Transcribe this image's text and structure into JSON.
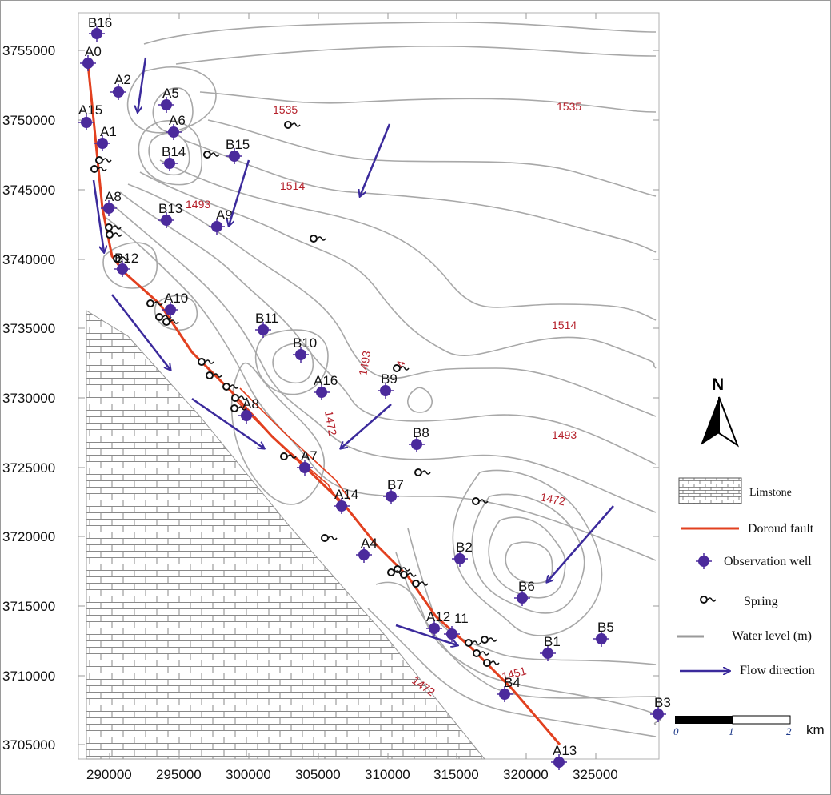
{
  "y_ticks": [
    "3755000",
    "3750000",
    "3745000",
    "3740000",
    "3735000",
    "3730000",
    "3725000",
    "3720000",
    "3715000",
    "3710000",
    "3705000"
  ],
  "x_ticks": [
    "290000",
    "295000",
    "300000",
    "305000",
    "310000",
    "315000",
    "320000",
    "325000"
  ],
  "contour_labels": {
    "c1535_left": "1535",
    "c1535_right": "1535",
    "c1514_top": "1514",
    "c1514_right": "1514",
    "c1493_left": "1493",
    "c1493_mid": "1493",
    "c1493_right": "1493",
    "c1472_mid": "1472",
    "c1472_right": "1472",
    "c1472_bottom": "1472",
    "c1451": "1451",
    "c_partial": "4"
  },
  "wells": {
    "B16": "B16",
    "A0": "A0",
    "A2": "A2",
    "A5": "A5",
    "A15": "A15",
    "A6": "A6",
    "A1": "A1",
    "B14": "B14",
    "B15": "B15",
    "A8": "A8",
    "B13": "B13",
    "A9": "A9",
    "B12": "B12",
    "A10": "A10",
    "B11": "B11",
    "B10": "B10",
    "A16": "A16",
    "B9": "B9",
    "A18": "A8",
    "B8": "B8",
    "A7": "A7",
    "B7": "B7",
    "A14": "A14",
    "A4": "A4",
    "B2": "B2",
    "B6": "B6",
    "A12": "A12",
    "A11": "11",
    "B1": "B1",
    "B5": "B5",
    "B4": "B4",
    "B3": "B3",
    "A13": "A13"
  },
  "north_label": "N",
  "legend": {
    "limestone": "Limstone",
    "fault": "Doroud fault",
    "well": "Observation well",
    "spring": "Spring",
    "water_level": "Water level (m)",
    "flow": "Flow direction"
  },
  "scale": {
    "n0": "0",
    "n1": "1",
    "n2": "2",
    "unit": "km"
  },
  "colors": {
    "fault": "#e2401f",
    "well": "#4b2a9c",
    "arrow": "#3b2a9c",
    "contour": "#9a9a9a",
    "contour_label": "#b5202a"
  },
  "icons": {
    "well": "well-marker-icon",
    "spring": "spring-icon",
    "north": "north-arrow-icon"
  }
}
